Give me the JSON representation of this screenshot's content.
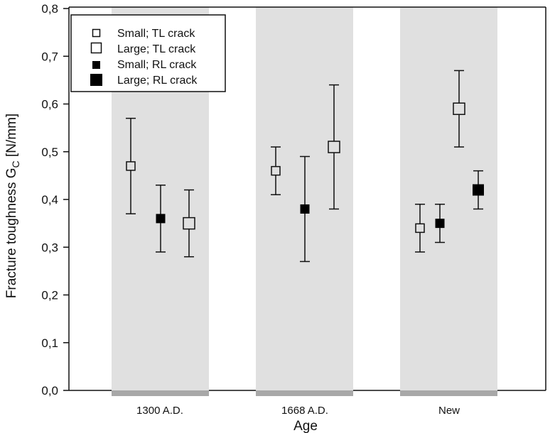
{
  "chart_data": {
    "type": "scatter",
    "title": "",
    "xlabel": "Age",
    "ylabel": "Fracture toughness G_C [N/mm]",
    "ylabel_main": "Fracture toughness G",
    "ylabel_sub": "C",
    "ylabel_unit": " [N/mm]",
    "ylim": [
      0,
      0.8
    ],
    "yticks": [
      "0,0",
      "0,1",
      "0,2",
      "0,3",
      "0,4",
      "0,5",
      "0,6",
      "0,7",
      "0,8"
    ],
    "categories": [
      "1300 A.D.",
      "1668 A.D.",
      "New"
    ],
    "grid": false,
    "legend_position": "upper-left",
    "series": [
      {
        "name": "Small; TL crack",
        "marker": "open-square-small",
        "points": [
          {
            "category": "1300 A.D.",
            "value": 0.47,
            "err_low": 0.37,
            "err_high": 0.57
          },
          {
            "category": "1668 A.D.",
            "value": 0.46,
            "err_low": 0.41,
            "err_high": 0.51
          },
          {
            "category": "New",
            "value": 0.34,
            "err_low": 0.29,
            "err_high": 0.39
          }
        ]
      },
      {
        "name": "Large; TL crack",
        "marker": "open-square-large",
        "points": [
          {
            "category": "1300 A.D.",
            "value": 0.35,
            "err_low": 0.28,
            "err_high": 0.42
          },
          {
            "category": "1668 A.D.",
            "value": 0.51,
            "err_low": 0.38,
            "err_high": 0.64
          },
          {
            "category": "New",
            "value": 0.59,
            "err_low": 0.51,
            "err_high": 0.67
          }
        ]
      },
      {
        "name": "Small; RL crack",
        "marker": "filled-square-small",
        "points": [
          {
            "category": "1300 A.D.",
            "value": 0.36,
            "err_low": 0.29,
            "err_high": 0.43
          },
          {
            "category": "1668 A.D.",
            "value": 0.38,
            "err_low": 0.27,
            "err_high": 0.49
          },
          {
            "category": "New",
            "value": 0.35,
            "err_low": 0.31,
            "err_high": 0.39
          }
        ]
      },
      {
        "name": "Large; RL crack",
        "marker": "filled-square-large",
        "points": [
          {
            "category": "New",
            "value": 0.42,
            "err_low": 0.38,
            "err_high": 0.46
          }
        ]
      }
    ],
    "colors": {
      "band": "#e0e0e0",
      "band_base": "#a8a8a8",
      "axis": "#111111",
      "marker_fill_open": "#e0e0e0",
      "marker_fill_solid": "#000000"
    }
  },
  "legend": {
    "items": [
      {
        "label": "Small; TL crack"
      },
      {
        "label": "Large; TL crack"
      },
      {
        "label": "Small; RL crack"
      },
      {
        "label": "Large; RL crack"
      }
    ]
  }
}
